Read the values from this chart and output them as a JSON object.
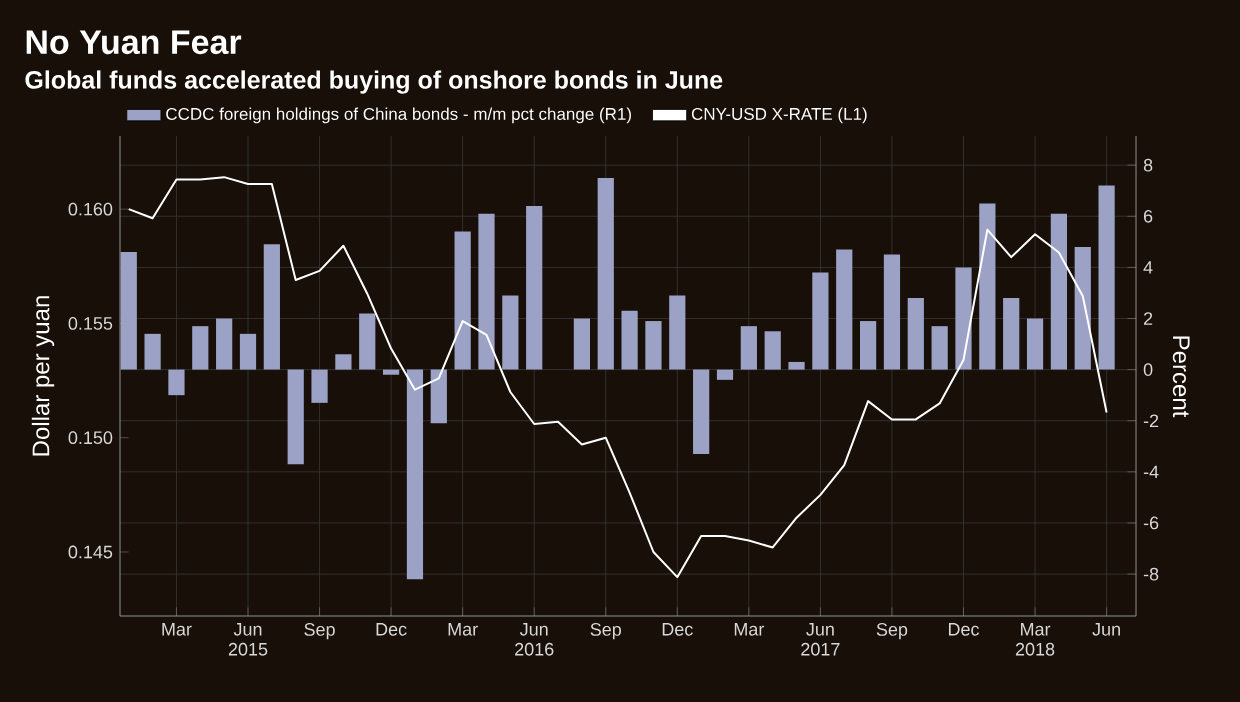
{
  "chart_data": {
    "type": "bar",
    "title": "No Yuan Fear",
    "subtitle": "Global funds accelerated buying of onshore bonds in June",
    "ylabel": "Dollar per yuan",
    "y2label": "Percent",
    "x": [
      "2015-01",
      "2015-02",
      "2015-03",
      "2015-04",
      "2015-05",
      "2015-06",
      "2015-07",
      "2015-08",
      "2015-09",
      "2015-10",
      "2015-11",
      "2015-12",
      "2016-01",
      "2016-02",
      "2016-03",
      "2016-04",
      "2016-05",
      "2016-06",
      "2016-07",
      "2016-08",
      "2016-09",
      "2016-10",
      "2016-11",
      "2016-12",
      "2017-01",
      "2017-02",
      "2017-03",
      "2017-04",
      "2017-05",
      "2017-06",
      "2017-07",
      "2017-08",
      "2017-09",
      "2017-10",
      "2017-11",
      "2017-12",
      "2018-01",
      "2018-02",
      "2018-03",
      "2018-04",
      "2018-05",
      "2018-06"
    ],
    "series": [
      {
        "name": "CCDC foreign holdings of China bonds - m/m pct change (R1)",
        "axis": "y2",
        "color": "#9ca2c6",
        "values": [
          4.6,
          1.4,
          -1.0,
          1.7,
          2.0,
          1.4,
          4.9,
          -3.7,
          -1.3,
          0.6,
          2.2,
          -0.2,
          -8.2,
          -2.1,
          5.4,
          6.1,
          2.9,
          6.4,
          0,
          2.0,
          7.5,
          2.3,
          1.9,
          2.9,
          -3.3,
          -0.4,
          1.7,
          1.5,
          0.3,
          3.8,
          4.7,
          1.9,
          4.5,
          2.8,
          1.7,
          4.0,
          6.5,
          2.8,
          2.0,
          6.1,
          4.8,
          7.2
        ]
      },
      {
        "name": "CNY-USD X-RATE  (L1)",
        "type": "line",
        "color": "#ffffff",
        "values": [
          0.16,
          0.1596,
          0.1613,
          0.1613,
          0.1614,
          0.1611,
          0.1611,
          0.1569,
          0.1573,
          0.1584,
          0.1563,
          0.1539,
          0.1521,
          0.1526,
          0.1551,
          0.1545,
          0.152,
          0.1506,
          0.1507,
          0.1497,
          0.15,
          0.1476,
          0.145,
          0.1439,
          0.1457,
          0.1457,
          0.1455,
          0.1452,
          0.1465,
          0.1475,
          0.1488,
          0.1516,
          0.1508,
          0.1508,
          0.1515,
          0.1534,
          0.1591,
          0.1579,
          0.1589,
          0.1581,
          0.1562,
          0.1511
        ]
      }
    ],
    "xlim": [
      "2014-12-20",
      "2018-07-08"
    ],
    "xticks": [
      {
        "value": "2015-03",
        "label": "Mar"
      },
      {
        "value": "2015-06",
        "label": "Jun 2015"
      },
      {
        "value": "2015-09",
        "label": "Sep"
      },
      {
        "value": "2015-12",
        "label": "Dec"
      },
      {
        "value": "2016-03",
        "label": "Mar"
      },
      {
        "value": "2016-06",
        "label": "Jun 2016"
      },
      {
        "value": "2016-09",
        "label": "Sep"
      },
      {
        "value": "2016-12",
        "label": "Dec"
      },
      {
        "value": "2017-03",
        "label": "Mar"
      },
      {
        "value": "2017-06",
        "label": "Jun 2017"
      },
      {
        "value": "2017-09",
        "label": "Sep"
      },
      {
        "value": "2017-12",
        "label": "Dec"
      },
      {
        "value": "2018-03",
        "label": "Mar 2018"
      },
      {
        "value": "2018-06",
        "label": "Jun"
      }
    ],
    "ylim": [
      0.1422,
      0.1632
    ],
    "yticks": [
      {
        "value": 0.145,
        "label": "0.145"
      },
      {
        "value": 0.15,
        "label": "0.150"
      },
      {
        "value": 0.155,
        "label": "0.155"
      },
      {
        "value": 0.16,
        "label": "0.160"
      }
    ],
    "y2lim": [
      -9.64,
      9.14
    ],
    "y2ticks": [
      -8,
      -6,
      -4,
      -2,
      0,
      2,
      4,
      6,
      8
    ],
    "grid": true,
    "legend": "top left"
  }
}
